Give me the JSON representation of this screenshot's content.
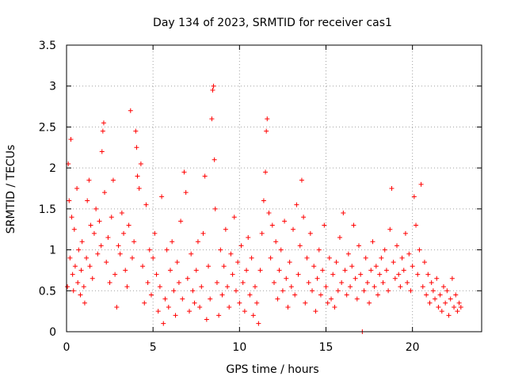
{
  "chart_data": {
    "type": "scatter",
    "title": "Day 134 of 2023, SRMTID for receiver cas1",
    "xlabel": "GPS time / hours",
    "ylabel": "SRMTID / TECUs",
    "xlim": [
      0,
      24
    ],
    "ylim": [
      0,
      3.5
    ],
    "x_ticks": [
      0,
      5,
      10,
      15,
      20
    ],
    "x_tick_labels": [
      "0",
      "5",
      "10",
      "15",
      "20"
    ],
    "y_ticks": [
      0,
      0.5,
      1,
      1.5,
      2,
      2.5,
      3,
      3.5
    ],
    "y_tick_labels": [
      "0",
      "0.5",
      "1",
      "1.5",
      "2",
      "2.5",
      "3",
      "3.5"
    ],
    "grid": true,
    "marker": "+",
    "colors": {
      "points": "#ff0000",
      "axes": "#000000",
      "grid": "#a0a0a0"
    },
    "series": [
      {
        "name": "cas1",
        "points": [
          [
            0.05,
            0.55
          ],
          [
            0.1,
            2.05
          ],
          [
            0.15,
            1.6
          ],
          [
            0.2,
            0.9
          ],
          [
            0.25,
            2.35
          ],
          [
            0.3,
            1.4
          ],
          [
            0.35,
            0.7
          ],
          [
            0.4,
            0.5
          ],
          [
            0.45,
            1.25
          ],
          [
            0.5,
            0.8
          ],
          [
            0.6,
            1.75
          ],
          [
            0.65,
            0.6
          ],
          [
            0.7,
            1.0
          ],
          [
            0.8,
            0.45
          ],
          [
            0.85,
            0.75
          ],
          [
            0.9,
            1.1
          ],
          [
            1.0,
            0.55
          ],
          [
            1.05,
            0.35
          ],
          [
            1.15,
            0.9
          ],
          [
            1.2,
            1.6
          ],
          [
            1.3,
            1.85
          ],
          [
            1.35,
            0.8
          ],
          [
            1.4,
            1.3
          ],
          [
            1.5,
            0.65
          ],
          [
            1.6,
            1.2
          ],
          [
            1.7,
            1.5
          ],
          [
            1.8,
            0.95
          ],
          [
            1.9,
            1.35
          ],
          [
            2.0,
            1.05
          ],
          [
            2.05,
            2.2
          ],
          [
            2.1,
            2.45
          ],
          [
            2.15,
            2.55
          ],
          [
            2.2,
            1.7
          ],
          [
            2.3,
            0.85
          ],
          [
            2.4,
            1.15
          ],
          [
            2.5,
            0.6
          ],
          [
            2.6,
            1.4
          ],
          [
            2.7,
            1.85
          ],
          [
            2.8,
            0.7
          ],
          [
            2.9,
            0.3
          ],
          [
            3.0,
            1.05
          ],
          [
            3.1,
            0.95
          ],
          [
            3.2,
            1.45
          ],
          [
            3.3,
            1.2
          ],
          [
            3.4,
            0.75
          ],
          [
            3.5,
            0.55
          ],
          [
            3.6,
            1.3
          ],
          [
            3.7,
            2.7
          ],
          [
            3.8,
            0.9
          ],
          [
            3.9,
            1.1
          ],
          [
            4.0,
            2.45
          ],
          [
            4.05,
            2.25
          ],
          [
            4.1,
            1.9
          ],
          [
            4.2,
            1.75
          ],
          [
            4.3,
            2.05
          ],
          [
            4.4,
            0.8
          ],
          [
            4.5,
            0.35
          ],
          [
            4.6,
            1.55
          ],
          [
            4.7,
            0.6
          ],
          [
            4.8,
            1.0
          ],
          [
            4.9,
            0.45
          ],
          [
            5.0,
            0.9
          ],
          [
            5.1,
            1.2
          ],
          [
            5.2,
            0.7
          ],
          [
            5.3,
            0.25
          ],
          [
            5.4,
            0.55
          ],
          [
            5.5,
            1.65
          ],
          [
            5.6,
            0.1
          ],
          [
            5.7,
            0.4
          ],
          [
            5.8,
            1.0
          ],
          [
            5.9,
            0.3
          ],
          [
            6.0,
            0.75
          ],
          [
            6.1,
            1.1
          ],
          [
            6.2,
            0.5
          ],
          [
            6.3,
            0.2
          ],
          [
            6.4,
            0.85
          ],
          [
            6.5,
            0.6
          ],
          [
            6.6,
            1.35
          ],
          [
            6.7,
            0.4
          ],
          [
            6.8,
            1.95
          ],
          [
            6.9,
            1.7
          ],
          [
            7.0,
            0.65
          ],
          [
            7.1,
            0.25
          ],
          [
            7.2,
            0.95
          ],
          [
            7.3,
            0.5
          ],
          [
            7.4,
            0.35
          ],
          [
            7.5,
            0.75
          ],
          [
            7.6,
            1.1
          ],
          [
            7.7,
            0.3
          ],
          [
            7.8,
            0.55
          ],
          [
            7.9,
            1.2
          ],
          [
            8.0,
            1.9
          ],
          [
            8.1,
            0.15
          ],
          [
            8.2,
            0.8
          ],
          [
            8.3,
            0.4
          ],
          [
            8.4,
            2.6
          ],
          [
            8.45,
            2.95
          ],
          [
            8.5,
            3.0
          ],
          [
            8.55,
            2.1
          ],
          [
            8.6,
            1.5
          ],
          [
            8.7,
            0.6
          ],
          [
            8.8,
            0.2
          ],
          [
            8.9,
            1.0
          ],
          [
            9.0,
            0.45
          ],
          [
            9.1,
            0.8
          ],
          [
            9.2,
            1.25
          ],
          [
            9.3,
            0.55
          ],
          [
            9.4,
            0.3
          ],
          [
            9.5,
            0.95
          ],
          [
            9.6,
            0.7
          ],
          [
            9.7,
            1.4
          ],
          [
            9.8,
            0.5
          ],
          [
            9.9,
            0.85
          ],
          [
            10.0,
            0.35
          ],
          [
            10.1,
            1.05
          ],
          [
            10.2,
            0.6
          ],
          [
            10.3,
            0.25
          ],
          [
            10.4,
            0.75
          ],
          [
            10.5,
            1.15
          ],
          [
            10.6,
            0.45
          ],
          [
            10.7,
            0.9
          ],
          [
            10.8,
            0.2
          ],
          [
            10.9,
            0.55
          ],
          [
            11.0,
            0.35
          ],
          [
            11.1,
            0.1
          ],
          [
            11.2,
            0.75
          ],
          [
            11.3,
            1.2
          ],
          [
            11.4,
            1.6
          ],
          [
            11.5,
            1.95
          ],
          [
            11.55,
            2.45
          ],
          [
            11.6,
            2.6
          ],
          [
            11.7,
            1.45
          ],
          [
            11.8,
            0.9
          ],
          [
            11.9,
            1.3
          ],
          [
            12.0,
            0.6
          ],
          [
            12.1,
            1.1
          ],
          [
            12.2,
            0.4
          ],
          [
            12.3,
            0.75
          ],
          [
            12.4,
            1.0
          ],
          [
            12.5,
            0.5
          ],
          [
            12.6,
            1.35
          ],
          [
            12.7,
            0.65
          ],
          [
            12.8,
            0.3
          ],
          [
            12.9,
            0.85
          ],
          [
            13.0,
            0.55
          ],
          [
            13.1,
            1.25
          ],
          [
            13.2,
            0.45
          ],
          [
            13.3,
            1.55
          ],
          [
            13.4,
            0.7
          ],
          [
            13.5,
            1.05
          ],
          [
            13.6,
            1.85
          ],
          [
            13.7,
            1.4
          ],
          [
            13.8,
            0.35
          ],
          [
            13.9,
            0.9
          ],
          [
            14.0,
            0.6
          ],
          [
            14.1,
            1.2
          ],
          [
            14.2,
            0.5
          ],
          [
            14.3,
            0.8
          ],
          [
            14.4,
            0.25
          ],
          [
            14.5,
            0.65
          ],
          [
            14.6,
            1.0
          ],
          [
            14.7,
            0.45
          ],
          [
            14.8,
            0.75
          ],
          [
            14.9,
            1.3
          ],
          [
            15.0,
            0.55
          ],
          [
            15.1,
            0.35
          ],
          [
            15.2,
            0.9
          ],
          [
            15.3,
            0.4
          ],
          [
            15.4,
            0.7
          ],
          [
            15.5,
            0.3
          ],
          [
            15.6,
            0.85
          ],
          [
            15.7,
            0.5
          ],
          [
            15.8,
            1.15
          ],
          [
            15.9,
            0.6
          ],
          [
            16.0,
            1.45
          ],
          [
            16.1,
            0.75
          ],
          [
            16.2,
            0.45
          ],
          [
            16.3,
            0.95
          ],
          [
            16.4,
            0.55
          ],
          [
            16.5,
            0.8
          ],
          [
            16.6,
            1.3
          ],
          [
            16.7,
            0.65
          ],
          [
            16.8,
            0.4
          ],
          [
            16.9,
            1.05
          ],
          [
            17.0,
            0.7
          ],
          [
            17.1,
            0.0
          ],
          [
            17.2,
            0.5
          ],
          [
            17.3,
            0.9
          ],
          [
            17.4,
            0.6
          ],
          [
            17.5,
            0.35
          ],
          [
            17.6,
            0.75
          ],
          [
            17.7,
            1.1
          ],
          [
            17.8,
            0.55
          ],
          [
            17.9,
            0.8
          ],
          [
            18.0,
            0.45
          ],
          [
            18.1,
            0.7
          ],
          [
            18.2,
            0.9
          ],
          [
            18.3,
            0.6
          ],
          [
            18.4,
            1.0
          ],
          [
            18.5,
            0.75
          ],
          [
            18.6,
            0.5
          ],
          [
            18.7,
            1.25
          ],
          [
            18.8,
            1.75
          ],
          [
            18.9,
            0.85
          ],
          [
            19.0,
            0.65
          ],
          [
            19.1,
            1.05
          ],
          [
            19.2,
            0.7
          ],
          [
            19.3,
            0.55
          ],
          [
            19.4,
            0.9
          ],
          [
            19.5,
            0.75
          ],
          [
            19.6,
            1.2
          ],
          [
            19.7,
            0.6
          ],
          [
            19.8,
            0.95
          ],
          [
            19.9,
            0.5
          ],
          [
            20.0,
            0.8
          ],
          [
            20.1,
            1.65
          ],
          [
            20.2,
            1.3
          ],
          [
            20.3,
            0.7
          ],
          [
            20.4,
            1.0
          ],
          [
            20.5,
            1.8
          ],
          [
            20.6,
            0.55
          ],
          [
            20.7,
            0.85
          ],
          [
            20.8,
            0.45
          ],
          [
            20.9,
            0.7
          ],
          [
            21.0,
            0.35
          ],
          [
            21.1,
            0.6
          ],
          [
            21.2,
            0.5
          ],
          [
            21.3,
            0.4
          ],
          [
            21.4,
            0.65
          ],
          [
            21.5,
            0.3
          ],
          [
            21.6,
            0.45
          ],
          [
            21.7,
            0.25
          ],
          [
            21.8,
            0.55
          ],
          [
            21.9,
            0.35
          ],
          [
            22.0,
            0.5
          ],
          [
            22.1,
            0.2
          ],
          [
            22.2,
            0.4
          ],
          [
            22.3,
            0.65
          ],
          [
            22.4,
            0.3
          ],
          [
            22.5,
            0.45
          ],
          [
            22.6,
            0.25
          ],
          [
            22.7,
            0.35
          ],
          [
            22.8,
            0.3
          ]
        ]
      }
    ]
  }
}
